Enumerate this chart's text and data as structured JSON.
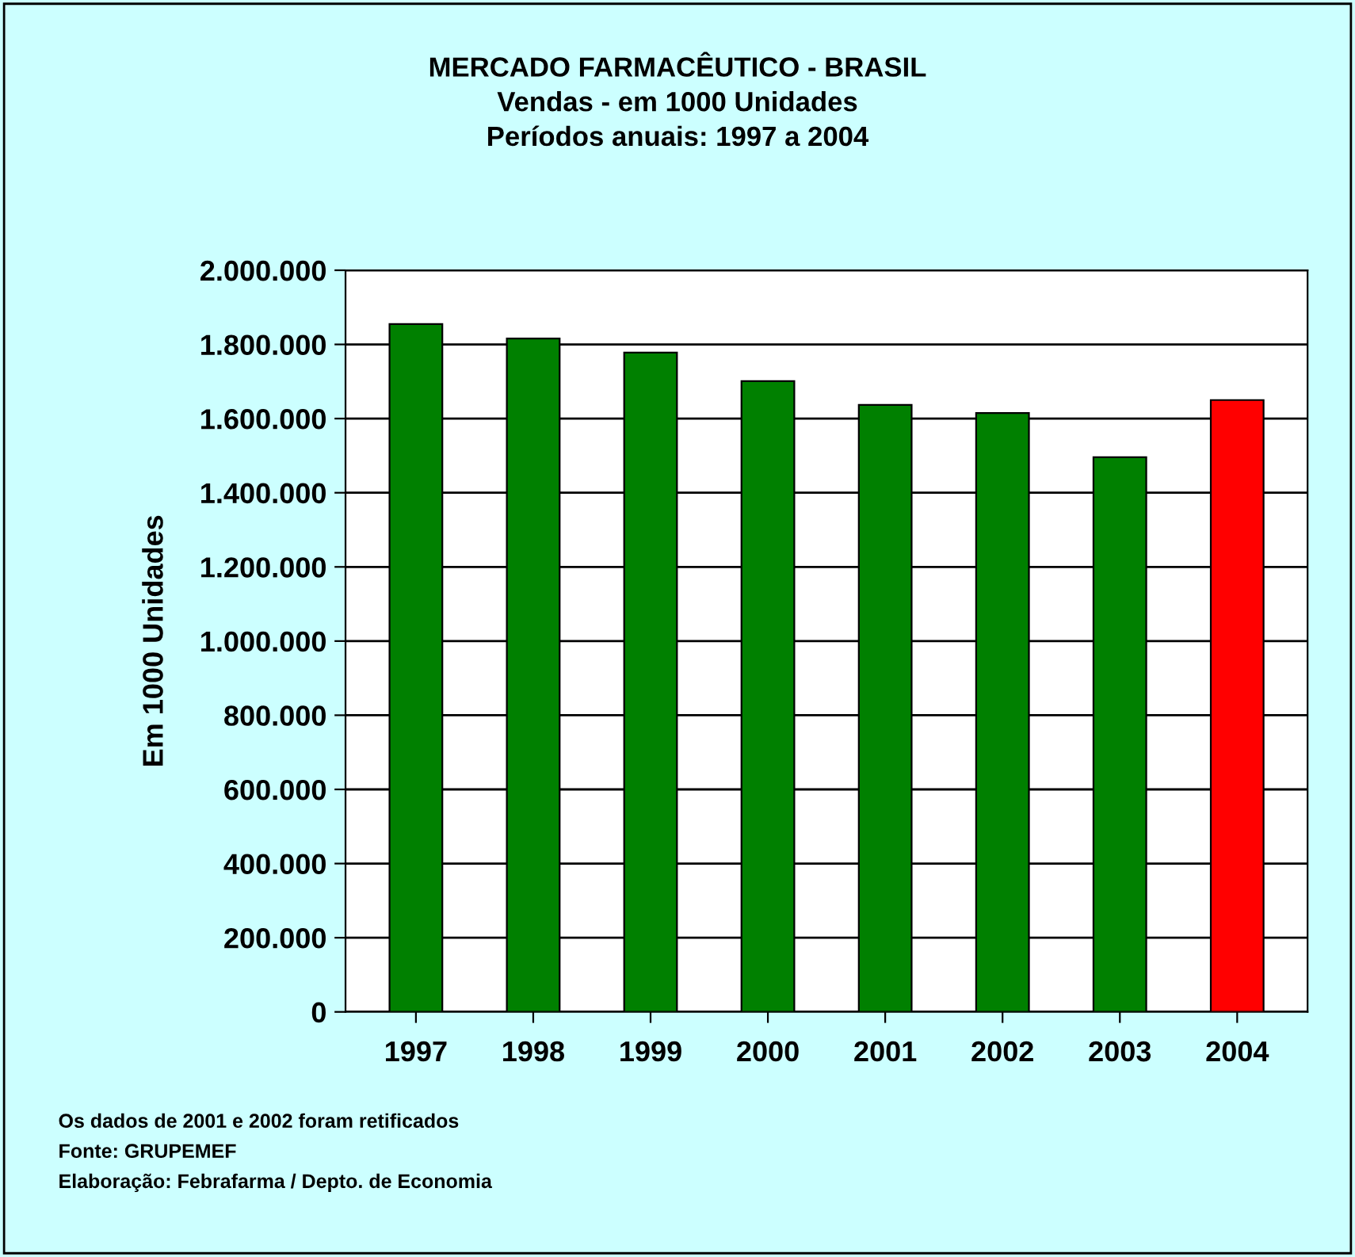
{
  "chart_data": {
    "type": "bar",
    "title": "MERCADO FARMACÊUTICO - BRASIL\nVendas - em 1000 Unidades\nPeríodos anuais: 1997 a 2004",
    "ylabel": "Em 1000 Unidades",
    "categories": [
      "1997",
      "1998",
      "1999",
      "2000",
      "2001",
      "2002",
      "2003",
      "2004"
    ],
    "values": [
      1855000,
      1816000,
      1778000,
      1701000,
      1637000,
      1615000,
      1496000,
      1650000
    ],
    "colors": [
      "#008000",
      "#008000",
      "#008000",
      "#008000",
      "#008000",
      "#008000",
      "#008000",
      "#ff0000"
    ],
    "ylim": [
      0,
      2000000
    ],
    "yticks": [
      {
        "value": 0,
        "label": "0"
      },
      {
        "value": 200000,
        "label": "200.000"
      },
      {
        "value": 400000,
        "label": "400.000"
      },
      {
        "value": 600000,
        "label": "600.000"
      },
      {
        "value": 800000,
        "label": "800.000"
      },
      {
        "value": 1000000,
        "label": "1.000.000"
      },
      {
        "value": 1200000,
        "label": "1.200.000"
      },
      {
        "value": 1400000,
        "label": "1.400.000"
      },
      {
        "value": 1600000,
        "label": "1.600.000"
      },
      {
        "value": 1800000,
        "label": "1.800.000"
      },
      {
        "value": 2000000,
        "label": "2.000.000"
      }
    ],
    "grid": "y",
    "annotations": [
      "Os dados de 2001 e 2002 foram retificados",
      "Fonte: GRUPEMEF",
      "Elaboração: Febrafarma / Depto. de Economia"
    ]
  }
}
